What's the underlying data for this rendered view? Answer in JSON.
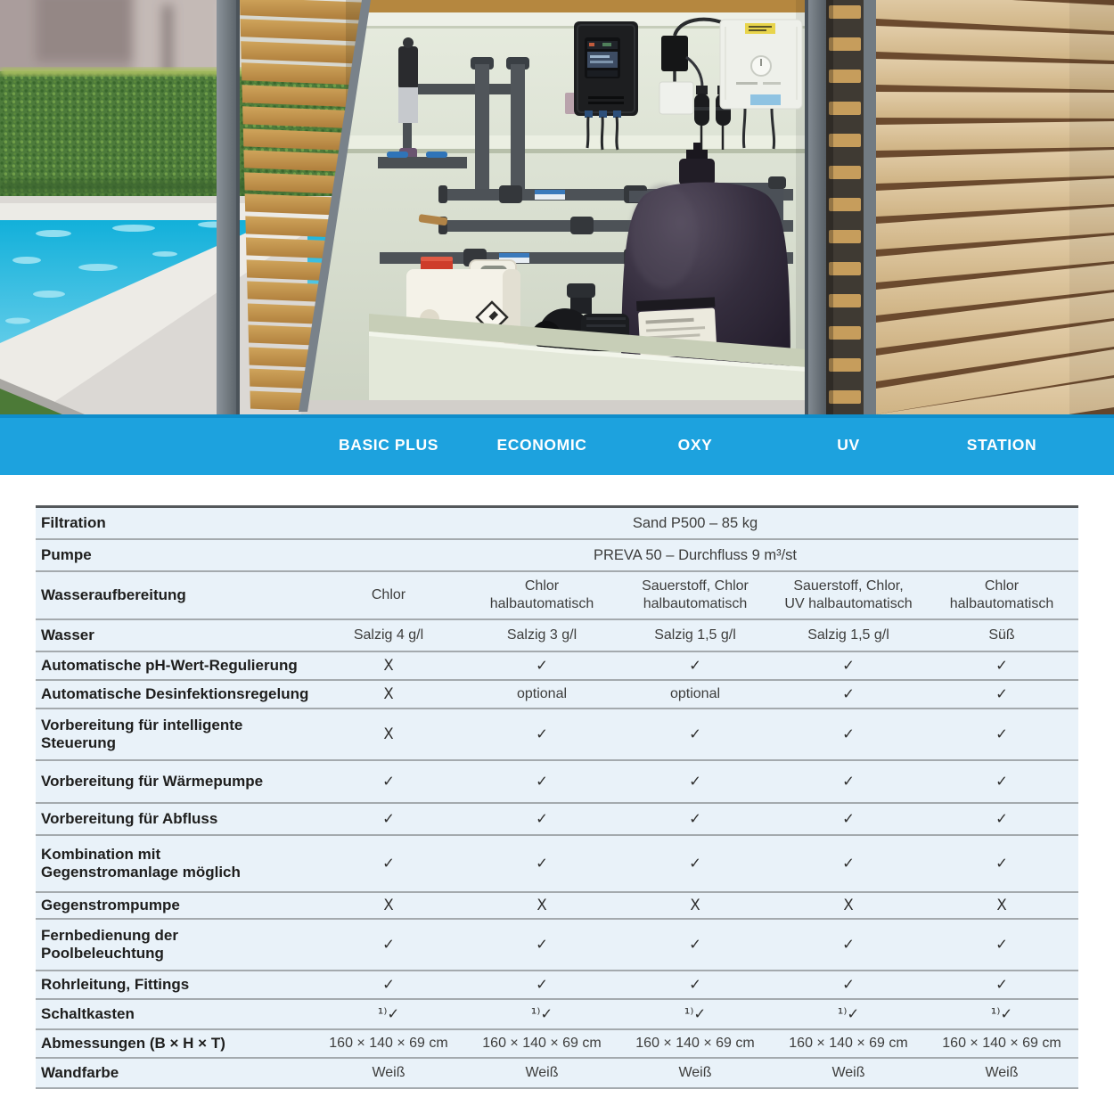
{
  "colors": {
    "accent_blue": "#1da2de",
    "row_bg": "#e9f2f9"
  },
  "header": {
    "columns": [
      "BASIC PLUS",
      "ECONOMIC",
      "OXY",
      "UV",
      "STATION"
    ]
  },
  "table": {
    "rows": [
      {
        "label": "Filtration",
        "span": "Sand P500 – 85 kg"
      },
      {
        "label": "Pumpe",
        "span": "PREVA 50 – Durchfluss 9 m³/st"
      },
      {
        "label": "Wasseraufbereitung",
        "values": [
          "Chlor",
          "Chlor\nhalbautomatisch",
          "Sauerstoff, Chlor\nhalbautomatisch",
          "Sauerstoff, Chlor,\nUV halbautomatisch",
          "Chlor\nhalbautomatisch"
        ]
      },
      {
        "label": "Wasser",
        "values": [
          "Salzig 4 g/l",
          "Salzig 3 g/l",
          "Salzig 1,5 g/l",
          "Salzig 1,5 g/l",
          "Süß"
        ]
      },
      {
        "label": "Automatische pH-Wert-Regulierung",
        "values": [
          "X",
          "✓",
          "✓",
          "✓",
          "✓"
        ]
      },
      {
        "label": "Automatische Desinfektionsregelung",
        "values": [
          "X",
          "optional",
          "optional",
          "✓",
          "✓"
        ]
      },
      {
        "label": "Vorbereitung für intelligente\nSteuerung",
        "values": [
          "X",
          "✓",
          "✓",
          "✓",
          "✓"
        ]
      },
      {
        "label": "Vorbereitung für Wärmepumpe",
        "values": [
          "✓",
          "✓",
          "✓",
          "✓",
          "✓"
        ]
      },
      {
        "label": "Vorbereitung für Abfluss",
        "values": [
          "✓",
          "✓",
          "✓",
          "✓",
          "✓"
        ]
      },
      {
        "label": "Kombination mit\nGegenstromanlage möglich",
        "values": [
          "✓",
          "✓",
          "✓",
          "✓",
          "✓"
        ]
      },
      {
        "label": "Gegenstrompumpe",
        "values": [
          "X",
          "X",
          "X",
          "X",
          "X"
        ]
      },
      {
        "label": "Fernbedienung der\nPoolbeleuchtung",
        "values": [
          "✓",
          "✓",
          "✓",
          "✓",
          "✓"
        ]
      },
      {
        "label": "Rohrleitung, Fittings",
        "values": [
          "✓",
          "✓",
          "✓",
          "✓",
          "✓"
        ]
      },
      {
        "label": "Schaltkasten",
        "values": [
          "¹⁾✓",
          "¹⁾✓",
          "¹⁾✓",
          "¹⁾✓",
          "¹⁾✓"
        ]
      },
      {
        "label": "Abmessungen (B × H × T)",
        "values": [
          "160 × 140 × 69 cm",
          "160 × 140 × 69 cm",
          "160 × 140 × 69 cm",
          "160 × 140 × 69 cm",
          "160 × 140 × 69 cm"
        ]
      },
      {
        "label": "Wandfarbe",
        "values": [
          "Weiß",
          "Weiß",
          "Weiß",
          "Weiß",
          "Weiß"
        ]
      }
    ]
  }
}
